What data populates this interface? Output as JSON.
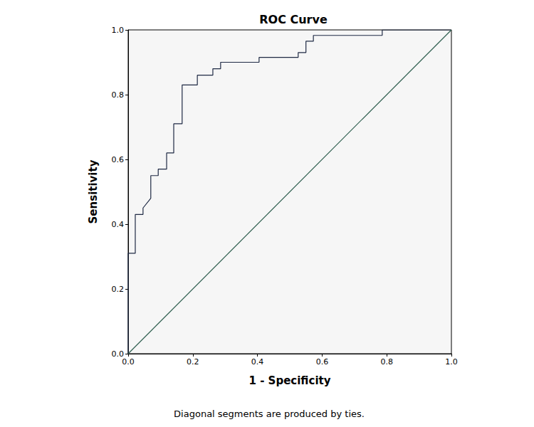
{
  "chart_data": {
    "type": "line",
    "title": "ROC Curve",
    "x_label": "1 - Specificity",
    "y_label": "Sensitivity",
    "footnote": "Diagonal segments are produced by ties.",
    "xlim": [
      0,
      1
    ],
    "ylim": [
      0,
      1
    ],
    "xticks": [
      {
        "value": 0,
        "label": "0.0"
      },
      {
        "value": 0.2,
        "label": "0.2"
      },
      {
        "value": 0.4,
        "label": "0.4"
      },
      {
        "value": 0.6,
        "label": "0.6"
      },
      {
        "value": 0.8,
        "label": "0.8"
      },
      {
        "value": 1,
        "label": "1.0"
      }
    ],
    "yticks": [
      {
        "value": 0,
        "label": "0.0"
      },
      {
        "value": 0.2,
        "label": "0.2"
      },
      {
        "value": 0.4,
        "label": "0.4"
      },
      {
        "value": 0.6,
        "label": "0.6"
      },
      {
        "value": 0.8,
        "label": "0.8"
      },
      {
        "value": 1,
        "label": "1.0"
      }
    ],
    "grid": false,
    "series": [
      {
        "color": "#1f2a44",
        "line_style": "solid",
        "x": [
          0,
          0,
          0.022,
          0.022,
          0.046,
          0.046,
          0.07,
          0.07,
          0.093,
          0.093,
          0.119,
          0.119,
          0.141,
          0.141,
          0.167,
          0.167,
          0.214,
          0.214,
          0.262,
          0.262,
          0.286,
          0.286,
          0.405,
          0.405,
          0.526,
          0.526,
          0.55,
          0.55,
          0.573,
          0.573,
          0.786,
          0.786,
          1
        ],
        "values": [
          0,
          0.31,
          0.31,
          0.43,
          0.43,
          0.45,
          0.48,
          0.55,
          0.55,
          0.57,
          0.57,
          0.62,
          0.62,
          0.71,
          0.71,
          0.83,
          0.83,
          0.86,
          0.86,
          0.88,
          0.88,
          0.9,
          0.9,
          0.915,
          0.915,
          0.93,
          0.93,
          0.965,
          0.965,
          0.983,
          0.983,
          1,
          1
        ]
      },
      {
        "color": "#2f5f50",
        "line_style": "solid",
        "x": [
          0,
          1
        ],
        "values": [
          0,
          1
        ]
      }
    ]
  }
}
